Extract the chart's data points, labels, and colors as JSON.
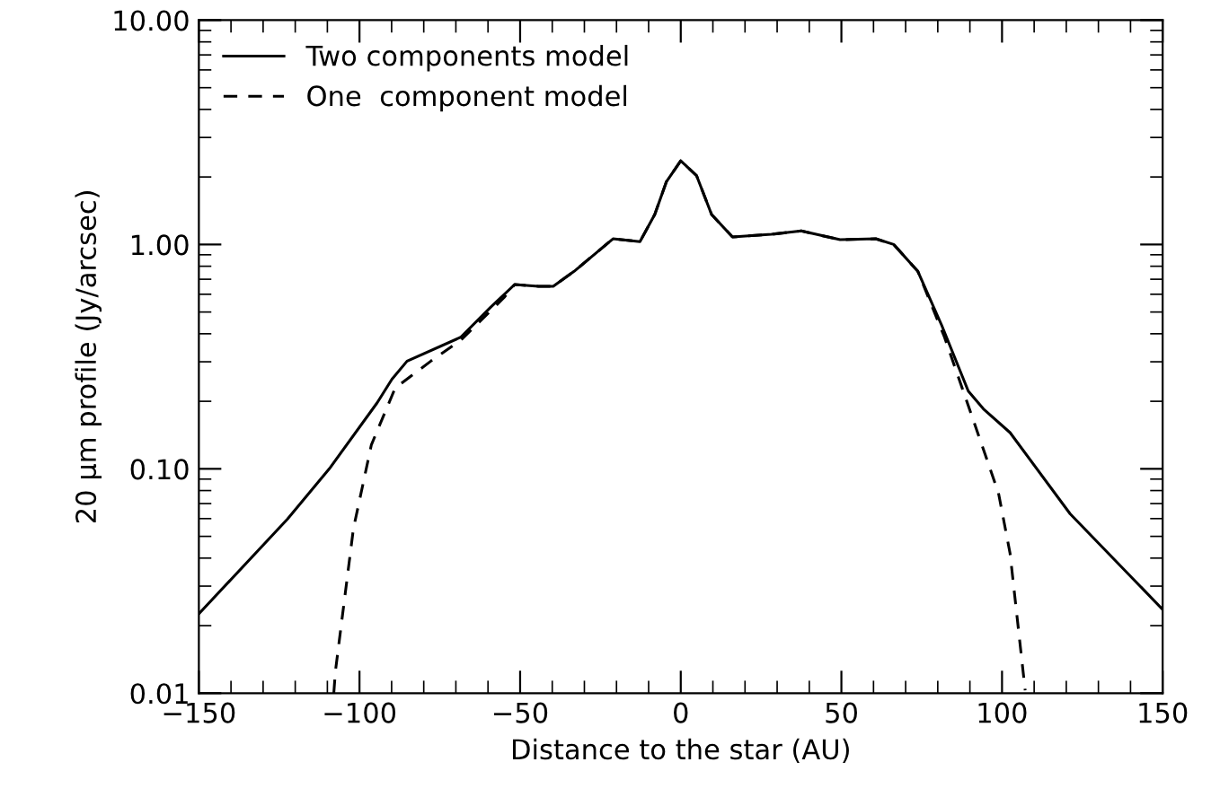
{
  "chart_data": {
    "type": "line",
    "xlabel": "Distance to the star (AU)",
    "ylabel": "20 μm profile (Jy/arcsec)",
    "log": "y",
    "xlim": [
      -150,
      150
    ],
    "ylim": [
      0.01,
      10
    ],
    "xticks": [
      {
        "value": -150,
        "label": "−150"
      },
      {
        "value": -100,
        "label": "−100"
      },
      {
        "value": -50,
        "label": "−50"
      },
      0,
      50,
      100,
      150
    ],
    "yticks": [
      {
        "value": 0.01,
        "label": "0.01"
      },
      {
        "value": 0.1,
        "label": "0.10"
      },
      {
        "value": 1,
        "label": "1.00"
      },
      {
        "value": 10,
        "label": "10.00"
      }
    ],
    "legend": "top left",
    "grid": false,
    "series": [
      {
        "name": "Two components model",
        "color": "#000000",
        "line_style": "solid",
        "x": [
          -150,
          -122.4,
          -109.4,
          -94.5,
          -89.9,
          -85.2,
          -68.5,
          -59.2,
          -51.7,
          -44.3,
          -39.7,
          -33.2,
          -21.1,
          -12.7,
          -8.1,
          -4.5,
          0,
          4.9,
          9.6,
          16.1,
          28.2,
          37.5,
          49.6,
          60.7,
          66.3,
          73.8,
          81.2,
          89.5,
          94.2,
          102.5,
          121.2,
          150
        ],
        "values": [
          0.0226,
          0.0597,
          0.1,
          0.197,
          0.251,
          0.302,
          0.386,
          0.525,
          0.663,
          0.651,
          0.651,
          0.759,
          1.06,
          1.03,
          1.36,
          1.9,
          2.36,
          2.03,
          1.36,
          1.08,
          1.11,
          1.15,
          1.05,
          1.06,
          1.0,
          0.759,
          0.437,
          0.222,
          0.185,
          0.145,
          0.063,
          0.0236
        ]
      },
      {
        "name": "One  component model",
        "color": "#000000",
        "line_style": "dashed",
        "x": [
          -108,
          -107.5,
          -101.9,
          -96.3,
          -88.9,
          -77.8,
          -68.5,
          -55,
          -51.7,
          -44.3,
          -39.7,
          -33.2,
          -21.1,
          -12.7,
          -8.1,
          -4.5,
          0,
          4.9,
          9.6,
          16.1,
          28.2,
          37.5,
          49.6,
          60.7,
          66.3,
          73.8,
          82.1,
          90.5,
          98.9,
          102.5,
          107.2
        ],
        "values": [
          0.01,
          0.0125,
          0.054,
          0.128,
          0.229,
          0.302,
          0.374,
          0.58,
          0.663,
          0.651,
          0.651,
          0.759,
          1.06,
          1.03,
          1.36,
          1.9,
          2.36,
          2.03,
          1.36,
          1.08,
          1.11,
          1.15,
          1.05,
          1.06,
          1.0,
          0.759,
          0.386,
          0.174,
          0.078,
          0.042,
          0.0103
        ]
      }
    ]
  }
}
